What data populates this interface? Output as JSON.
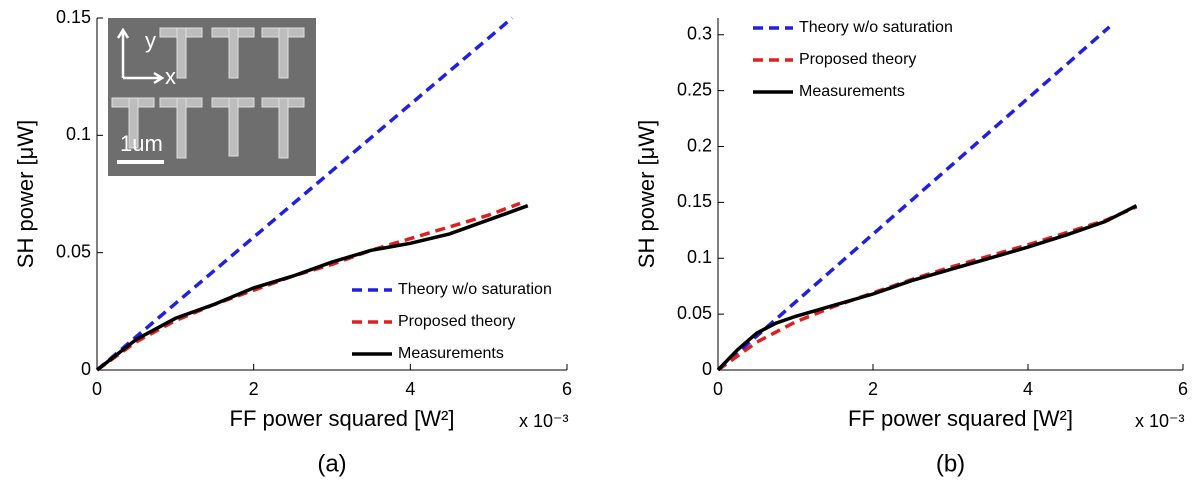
{
  "chart_data": [
    {
      "type": "line",
      "caption": "(a)",
      "xlabel": "FF power squared [W²]",
      "x_exponent": "x 10⁻³",
      "ylabel": "SH power [μW]",
      "xlim": [
        0,
        6
      ],
      "xticks": [
        0,
        2,
        4,
        6
      ],
      "ylim": [
        0,
        0.15
      ],
      "yticks": [
        0,
        0.05,
        0.1,
        0.15
      ],
      "legend": "lower right",
      "inset": {
        "y_label": "y",
        "x_label": "x",
        "scale_label": "1um"
      },
      "series": [
        {
          "name": "Theory w/o saturation",
          "color": "#2020e0",
          "style": "dashed",
          "x": [
            0,
            5.3
          ],
          "values": [
            0,
            0.15
          ]
        },
        {
          "name": "Proposed theory",
          "color": "#e02020",
          "style": "dashed",
          "x": [
            0,
            0.5,
            1,
            1.5,
            2,
            2.5,
            3,
            3.5,
            4,
            4.5,
            5,
            5.4
          ],
          "values": [
            0,
            0.012,
            0.021,
            0.028,
            0.034,
            0.04,
            0.045,
            0.051,
            0.056,
            0.061,
            0.066,
            0.071
          ]
        },
        {
          "name": "Measurements",
          "color": "#000000",
          "style": "solid",
          "x": [
            0,
            0.5,
            1,
            1.5,
            2,
            2.5,
            3,
            3.5,
            4,
            4.5,
            5,
            5.25,
            5.5
          ],
          "values": [
            0,
            0.013,
            0.022,
            0.028,
            0.035,
            0.04,
            0.046,
            0.051,
            0.054,
            0.058,
            0.064,
            0.067,
            0.07
          ]
        }
      ]
    },
    {
      "type": "line",
      "caption": "(b)",
      "xlabel": "FF power squared [W²]",
      "x_exponent": "x 10⁻³",
      "ylabel": "SH power [μW]",
      "xlim": [
        0,
        6
      ],
      "xticks": [
        0,
        2,
        4,
        6
      ],
      "ylim": [
        0,
        0.315
      ],
      "yticks": [
        0,
        0.05,
        0.1,
        0.15,
        0.2,
        0.25,
        0.3
      ],
      "legend": "upper left",
      "series": [
        {
          "name": "Theory w/o saturation",
          "color": "#2020e0",
          "style": "dashed",
          "x": [
            0,
            5.05
          ],
          "values": [
            0,
            0.307
          ]
        },
        {
          "name": "Proposed theory",
          "color": "#e02020",
          "style": "dashed",
          "x": [
            0,
            0.5,
            1,
            1.5,
            2,
            2.5,
            3,
            3.5,
            4,
            4.5,
            5,
            5.4
          ],
          "values": [
            0,
            0.025,
            0.043,
            0.057,
            0.069,
            0.081,
            0.092,
            0.102,
            0.112,
            0.123,
            0.134,
            0.146
          ]
        },
        {
          "name": "Measurements",
          "color": "#000000",
          "style": "solid",
          "x": [
            0,
            0.25,
            0.5,
            0.75,
            1,
            1.5,
            2,
            2.5,
            3,
            3.5,
            4,
            4.5,
            5,
            5.4
          ],
          "values": [
            0,
            0.018,
            0.033,
            0.042,
            0.048,
            0.058,
            0.068,
            0.08,
            0.09,
            0.1,
            0.11,
            0.121,
            0.133,
            0.147
          ]
        }
      ]
    }
  ]
}
